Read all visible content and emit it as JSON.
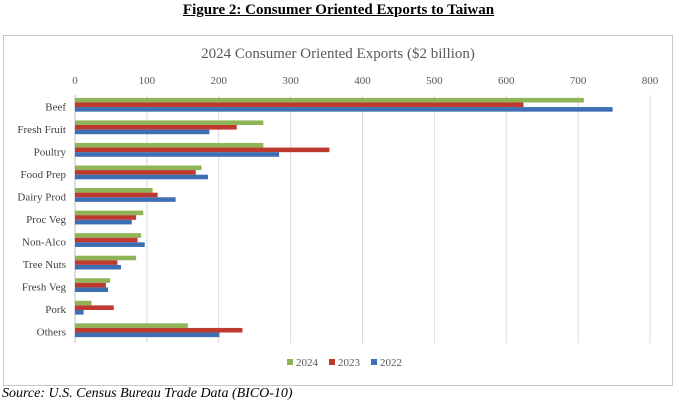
{
  "figure_title": "Figure 2: Consumer Oriented Exports to Taiwan",
  "source": "Source: U.S. Census Bureau Trade Data (BICO-10)",
  "colors": {
    "2024": "#8fb457",
    "2023": "#c0392e",
    "2022": "#3f6fb3"
  },
  "chart_data": {
    "type": "bar",
    "orientation": "horizontal",
    "title": "2024 Consumer Oriented Exports ($2 billion)",
    "categories": [
      "Beef",
      "Fresh Fruit",
      "Poultry",
      "Food Prep",
      "Dairy Prod",
      "Proc Veg",
      "Non-Alco",
      "Tree Nuts",
      "Fresh Veg",
      "Pork",
      "Others"
    ],
    "series": [
      {
        "name": "2024",
        "values": [
          708,
          262,
          262,
          176,
          108,
          95,
          92,
          85,
          49,
          23,
          157
        ]
      },
      {
        "name": "2023",
        "values": [
          624,
          225,
          354,
          168,
          115,
          85,
          87,
          59,
          43,
          54,
          233
        ]
      },
      {
        "name": "2022",
        "values": [
          748,
          187,
          284,
          185,
          140,
          79,
          97,
          64,
          46,
          12,
          201
        ]
      }
    ],
    "xlim": [
      0,
      800
    ],
    "xticks": [
      0,
      100,
      200,
      300,
      400,
      500,
      600,
      700,
      800
    ],
    "grid": true,
    "axis_position": "top",
    "legend_position": "bottom",
    "legend_order": [
      "2024",
      "2023",
      "2022"
    ]
  }
}
